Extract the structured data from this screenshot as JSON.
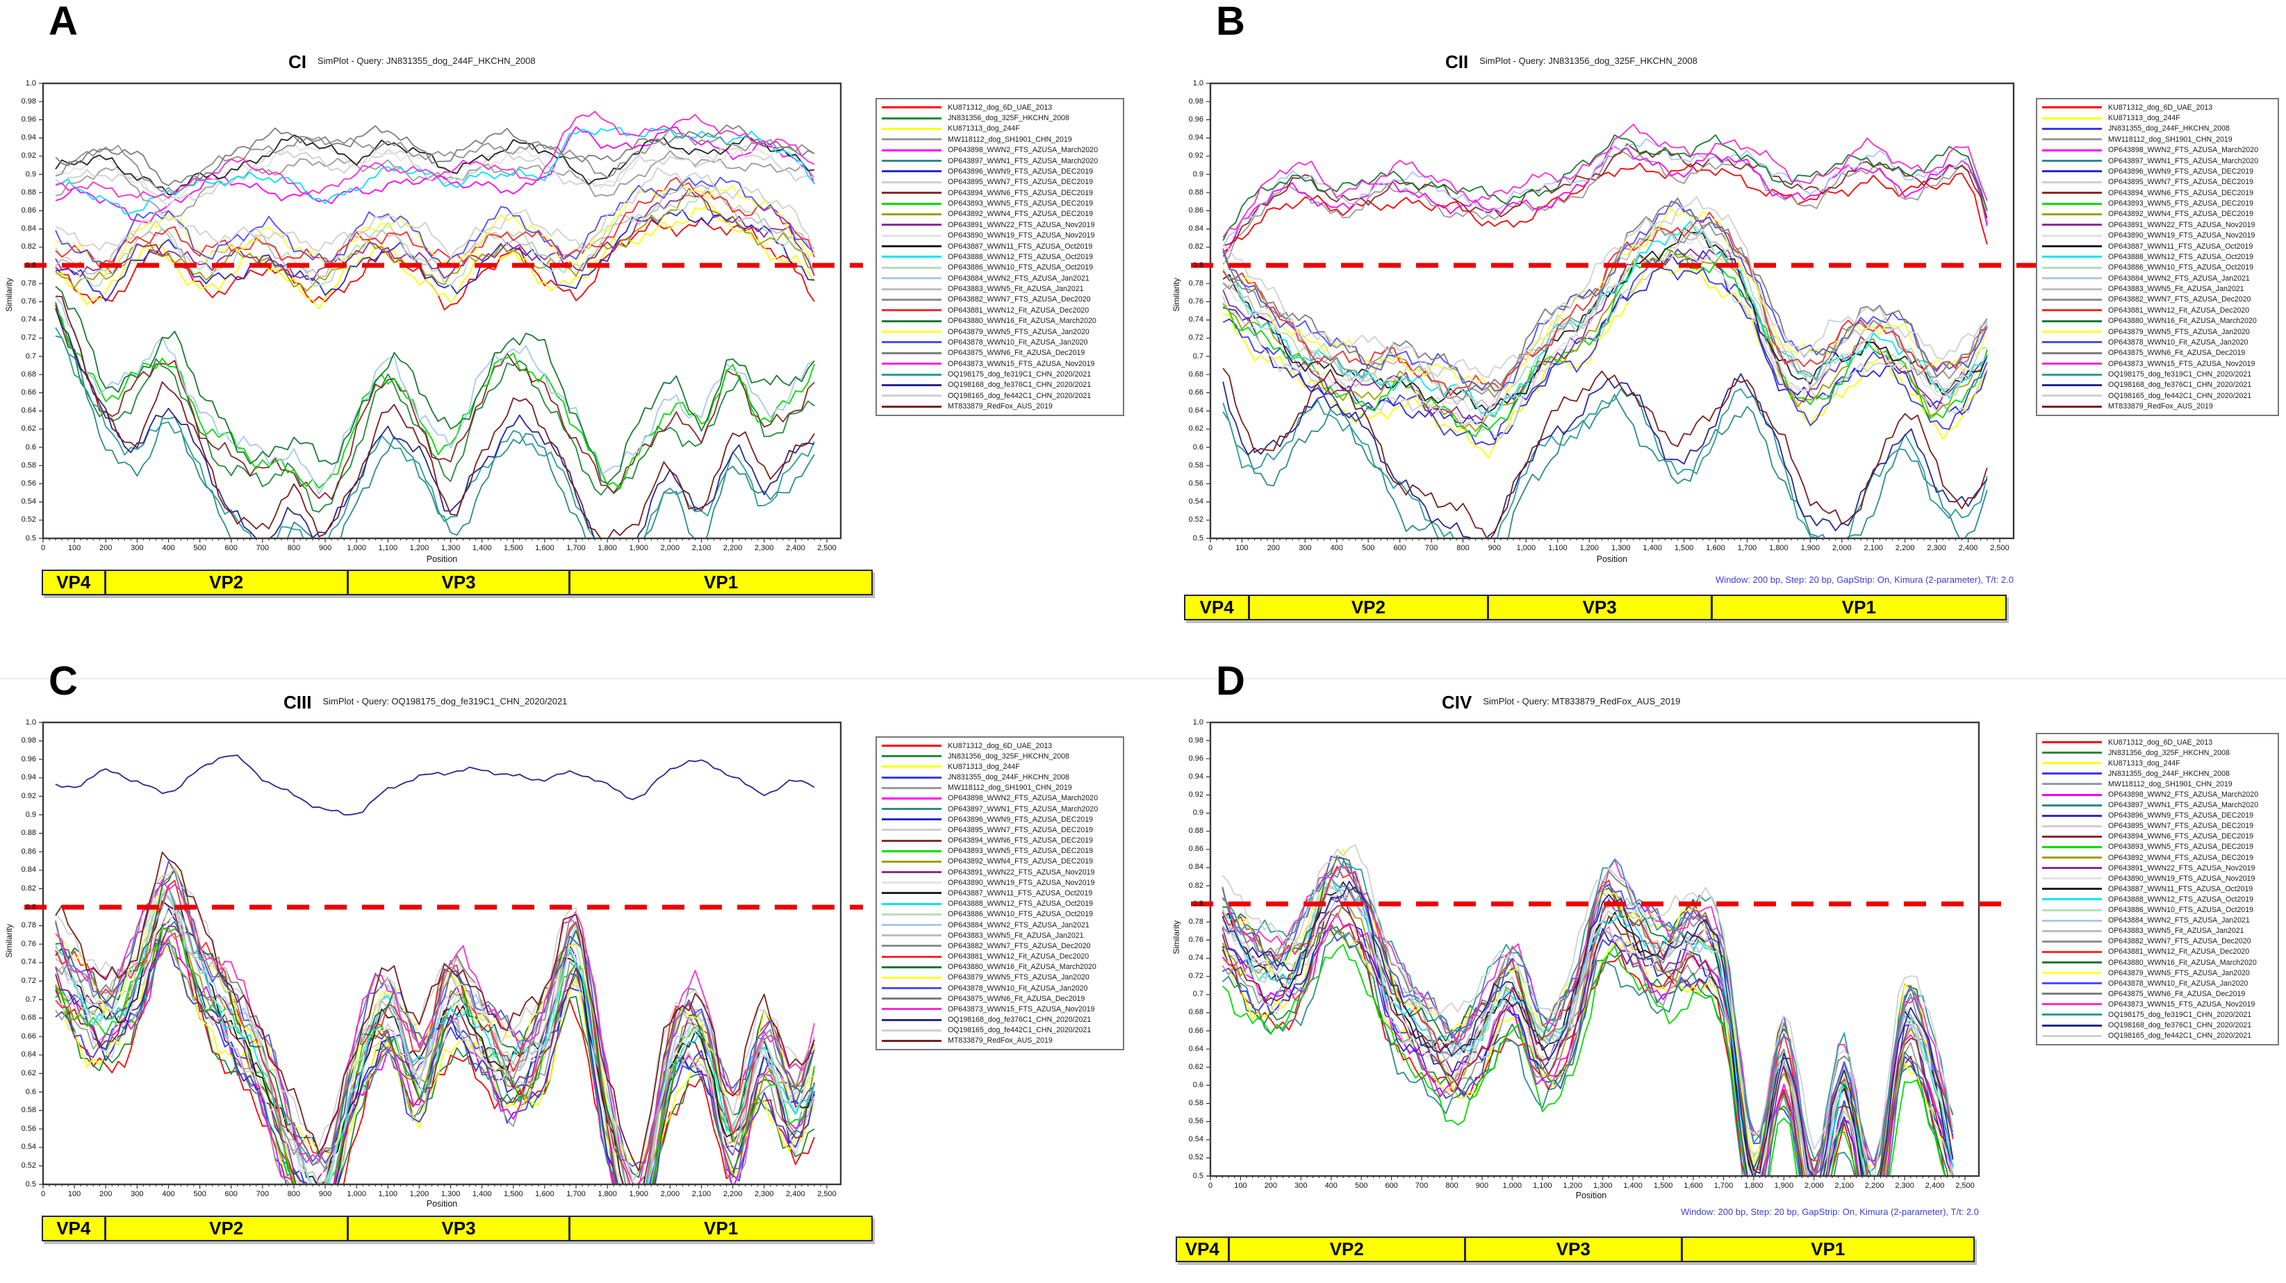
{
  "panels": [
    "A",
    "B",
    "C",
    "D"
  ],
  "x_axis_label": "Position",
  "y_axis_label": "Similarity",
  "threshold_color": "#ee0000",
  "vp_bar_color": "#ffff00",
  "genome_regions": [
    {
      "name": "VP4",
      "start": 0,
      "end": 190
    },
    {
      "name": "VP2",
      "start": 190,
      "end": 950
    },
    {
      "name": "VP3",
      "start": 950,
      "end": 1640
    },
    {
      "name": "VP1",
      "start": 1640,
      "end": 2560
    }
  ],
  "strains": [
    {
      "label": "KU871312_dog_6D_UAE_2013",
      "color": "#ff0000"
    },
    {
      "label": "JN831356_dog_325F_HKCHN_2008",
      "color": "#1f8c3b"
    },
    {
      "label": "KU871313_dog_244F",
      "color": "#ffff00"
    },
    {
      "label": "JN831355_dog_244F_HKCHN_2008",
      "color": "#3a3af0"
    },
    {
      "label": "MW118112_dog_SH1901_CHN_2019",
      "color": "#9a9a9a"
    },
    {
      "label": "OP643898_WWN2_FTS_AZUSA_March2020",
      "color": "#ff00ff"
    },
    {
      "label": "OP643897_WWN1_FTS_AZUSA_March2020",
      "color": "#2e8b8b"
    },
    {
      "label": "OP643896_WWN9_FTS_AZUSA_DEC2019",
      "color": "#2a2ad0"
    },
    {
      "label": "OP643895_WWN7_FTS_AZUSA_DEC2019",
      "color": "#cfcfcf"
    },
    {
      "label": "OP643894_WWN6_FTS_AZUSA_DEC2019",
      "color": "#8b2a2a"
    },
    {
      "label": "OP643893_WWN5_FTS_AZUSA_DEC2019",
      "color": "#00dd00"
    },
    {
      "label": "OP643892_WWN4_FTS_AZUSA_DEC2019",
      "color": "#a0a000"
    },
    {
      "label": "OP643891_WWN22_FTS_AZUSA_Nov2019",
      "color": "#8a2b9e"
    },
    {
      "label": "OP643890_WWN19_FTS_AZUSA_Nov2019",
      "color": "#e2e2e2"
    },
    {
      "label": "OP643887_WWN11_FTS_AZUSA_Oct2019",
      "color": "#202020"
    },
    {
      "label": "OP643888_WWN12_FTS_AZUSA_Oct2019",
      "color": "#00e5ff"
    },
    {
      "label": "OP643886_WWN10_FTS_AZUSA_Oct2019",
      "color": "#b9dcb9"
    },
    {
      "label": "OP643884_WWN2_FTS_AZUSA_Jan2021",
      "color": "#a8c8f0"
    },
    {
      "label": "OP643883_WWN5_Fit_AZUSA_Jan2021",
      "color": "#bdbdbd"
    },
    {
      "label": "OP643882_WWN7_FTS_AZUSA_Dec2020",
      "color": "#8f8f8f"
    },
    {
      "label": "OP643881_WWN12_Fit_AZUSA_Dec2020",
      "color": "#ff2a2a"
    },
    {
      "label": "OP643880_WWN16_Fit_AZUSA_March2020",
      "color": "#1a7a33"
    },
    {
      "label": "OP643879_WWN5_FTS_AZUSA_Jan2020",
      "color": "#ffff33"
    },
    {
      "label": "OP643878_WWN10_Fit_AZUSA_Jan2020",
      "color": "#4d4dff"
    },
    {
      "label": "OP643875_WWN6_Fit_AZUSA_Dec2019",
      "color": "#7d7d7d"
    },
    {
      "label": "OP643873_WWN15_FTS_AZUSA_Nov2019",
      "color": "#ff2ad4"
    },
    {
      "label": "OQ198175_dog_fe319C1_CHN_2020/2021",
      "color": "#2a9d9d"
    },
    {
      "label": "OQ198168_dog_fe376C1_CHN_2020/2021",
      "color": "#28288f"
    },
    {
      "label": "OQ198165_dog_fe442C1_CHN_2020/2021",
      "color": "#d0d0d0"
    },
    {
      "label": "MT833879_RedFox_AUS_2019",
      "color": "#7a1f1f"
    }
  ],
  "chart_data": [
    {
      "panel": "A",
      "type": "line",
      "title": "CI",
      "subtitle": "SimPlot - Query: JN831355_dog_244F_HKCHN_2008",
      "xlabel": "Position",
      "ylabel": "Similarity",
      "xlim": [
        0,
        2500
      ],
      "ylim": [
        0.5,
        1.0
      ],
      "x_tick_step": 100,
      "y_tick_step": 0.02,
      "grid": false,
      "legend_position": "right",
      "threshold": {
        "value": 0.8,
        "color": "#ee0000",
        "style": "dashed"
      },
      "profile_x_step": 100,
      "clusters": {
        "top": {
          "amp": 0.012,
          "spread": 0.006,
          "values": [
            0.895,
            0.905,
            0.915,
            0.9,
            0.875,
            0.89,
            0.905,
            0.92,
            0.93,
            0.925,
            0.92,
            0.93,
            0.915,
            0.905,
            0.92,
            0.925,
            0.92,
            0.905,
            0.895,
            0.92,
            0.93,
            0.925,
            0.93,
            0.925,
            0.915,
            0.905
          ]
        },
        "maghigh": {
          "amp": 0.011,
          "spread": 0.008,
          "values": [
            0.88,
            0.885,
            0.875,
            0.862,
            0.875,
            0.89,
            0.9,
            0.895,
            0.885,
            0.875,
            0.89,
            0.9,
            0.9,
            0.895,
            0.9,
            0.895,
            0.9,
            0.952,
            0.945,
            0.94,
            0.95,
            0.945,
            0.935,
            0.935,
            0.92,
            0.885
          ]
        },
        "mid": {
          "amp": 0.016,
          "spread": 0.005,
          "values": [
            0.815,
            0.8,
            0.79,
            0.825,
            0.83,
            0.8,
            0.81,
            0.82,
            0.8,
            0.79,
            0.82,
            0.83,
            0.81,
            0.79,
            0.82,
            0.83,
            0.81,
            0.8,
            0.83,
            0.855,
            0.87,
            0.875,
            0.86,
            0.845,
            0.825,
            0.785
          ]
        },
        "low": {
          "amp": 0.02,
          "spread": 0.009,
          "values": [
            0.78,
            0.72,
            0.655,
            0.67,
            0.7,
            0.64,
            0.6,
            0.575,
            0.585,
            0.56,
            0.62,
            0.68,
            0.64,
            0.6,
            0.66,
            0.7,
            0.68,
            0.62,
            0.555,
            0.6,
            0.65,
            0.62,
            0.68,
            0.64,
            0.66,
            0.685
          ]
        },
        "deep": {
          "amp": 0.018,
          "spread": 0.011,
          "values": [
            0.765,
            0.7,
            0.62,
            0.6,
            0.645,
            0.58,
            0.52,
            0.5,
            0.525,
            0.49,
            0.56,
            0.62,
            0.585,
            0.52,
            0.58,
            0.625,
            0.6,
            0.54,
            0.485,
            0.5,
            0.56,
            0.52,
            0.6,
            0.55,
            0.58,
            0.62
          ]
        }
      },
      "series": [
        {
          "s": 0,
          "c": "mid"
        },
        {
          "s": 1,
          "c": "low"
        },
        {
          "s": 2,
          "c": "mid"
        },
        {
          "s": 4,
          "c": "top"
        },
        {
          "s": 5,
          "c": "maghigh"
        },
        {
          "s": 6,
          "c": "deep"
        },
        {
          "s": 7,
          "c": "mid"
        },
        {
          "s": 8,
          "c": "top"
        },
        {
          "s": 9,
          "c": "low"
        },
        {
          "s": 10,
          "c": "low"
        },
        {
          "s": 11,
          "c": "mid"
        },
        {
          "s": 12,
          "c": "mid"
        },
        {
          "s": 13,
          "c": "top"
        },
        {
          "s": 14,
          "c": "top"
        },
        {
          "s": 15,
          "c": "maghigh"
        },
        {
          "s": 16,
          "c": "mid"
        },
        {
          "s": 17,
          "c": "low"
        },
        {
          "s": 18,
          "c": "mid"
        },
        {
          "s": 19,
          "c": "top"
        },
        {
          "s": 20,
          "c": "mid"
        },
        {
          "s": 21,
          "c": "low"
        },
        {
          "s": 22,
          "c": "mid"
        },
        {
          "s": 23,
          "c": "mid"
        },
        {
          "s": 24,
          "c": "top"
        },
        {
          "s": 25,
          "c": "maghigh"
        },
        {
          "s": 26,
          "c": "deep"
        },
        {
          "s": 27,
          "c": "deep"
        },
        {
          "s": 28,
          "c": "mid"
        },
        {
          "s": 29,
          "c": "deep"
        }
      ]
    },
    {
      "panel": "B",
      "type": "line",
      "title": "CII",
      "subtitle": "SimPlot - Query: JN831356_dog_325F_HKCHN_2008",
      "caption": "Window: 200 bp, Step: 20 bp, GapStrip: On, Kimura (2-parameter), T/t: 2.0",
      "xlabel": "Position",
      "ylabel": "Similarity",
      "xlim": [
        0,
        2500
      ],
      "ylim": [
        0.5,
        1.0
      ],
      "x_tick_step": 100,
      "y_tick_step": 0.02,
      "grid": false,
      "legend_position": "right",
      "threshold": {
        "value": 0.8,
        "color": "#ee0000",
        "style": "dashed"
      },
      "profile_x_step": 100,
      "clusters": {
        "top": {
          "amp": 0.013,
          "spread": 0.005,
          "values": [
            0.805,
            0.845,
            0.88,
            0.89,
            0.87,
            0.88,
            0.89,
            0.88,
            0.87,
            0.862,
            0.872,
            0.882,
            0.9,
            0.928,
            0.92,
            0.912,
            0.92,
            0.912,
            0.89,
            0.882,
            0.9,
            0.912,
            0.892,
            0.9,
            0.91,
            0.812
          ]
        },
        "mid": {
          "amp": 0.018,
          "spread": 0.004,
          "values": [
            0.79,
            0.76,
            0.73,
            0.7,
            0.683,
            0.672,
            0.68,
            0.662,
            0.65,
            0.643,
            0.68,
            0.72,
            0.74,
            0.79,
            0.82,
            0.828,
            0.82,
            0.78,
            0.7,
            0.672,
            0.7,
            0.72,
            0.7,
            0.662,
            0.68,
            0.73
          ]
        },
        "low": {
          "amp": 0.02,
          "spread": 0.012,
          "values": [
            0.7,
            0.6,
            0.583,
            0.64,
            0.65,
            0.6,
            0.55,
            0.532,
            0.5,
            0.49,
            0.58,
            0.62,
            0.64,
            0.66,
            0.62,
            0.583,
            0.62,
            0.66,
            0.6,
            0.52,
            0.5,
            0.56,
            0.62,
            0.553,
            0.52,
            0.6
          ]
        }
      },
      "series": [
        {
          "s": 0,
          "c": "top"
        },
        {
          "s": 2,
          "c": "mid"
        },
        {
          "s": 3,
          "c": "mid"
        },
        {
          "s": 4,
          "c": "top"
        },
        {
          "s": 5,
          "c": "top"
        },
        {
          "s": 6,
          "c": "low"
        },
        {
          "s": 7,
          "c": "mid"
        },
        {
          "s": 8,
          "c": "mid"
        },
        {
          "s": 9,
          "c": "top"
        },
        {
          "s": 10,
          "c": "mid"
        },
        {
          "s": 11,
          "c": "mid"
        },
        {
          "s": 12,
          "c": "mid"
        },
        {
          "s": 13,
          "c": "mid"
        },
        {
          "s": 14,
          "c": "mid"
        },
        {
          "s": 15,
          "c": "mid"
        },
        {
          "s": 16,
          "c": "mid"
        },
        {
          "s": 17,
          "c": "top"
        },
        {
          "s": 18,
          "c": "mid"
        },
        {
          "s": 19,
          "c": "mid"
        },
        {
          "s": 20,
          "c": "mid"
        },
        {
          "s": 21,
          "c": "top"
        },
        {
          "s": 22,
          "c": "mid"
        },
        {
          "s": 23,
          "c": "mid"
        },
        {
          "s": 24,
          "c": "mid"
        },
        {
          "s": 25,
          "c": "top"
        },
        {
          "s": 26,
          "c": "low"
        },
        {
          "s": 27,
          "c": "low"
        },
        {
          "s": 28,
          "c": "mid"
        },
        {
          "s": 29,
          "c": "low"
        }
      ]
    },
    {
      "panel": "C",
      "type": "line",
      "title": "CIII",
      "subtitle": "SimPlot - Query: OQ198175_dog_fe319C1_CHN_2020/2021",
      "xlabel": "Position",
      "ylabel": "Similarity",
      "xlim": [
        0,
        2500
      ],
      "ylim": [
        0.5,
        1.0
      ],
      "x_tick_step": 100,
      "y_tick_step": 0.02,
      "grid": false,
      "legend_position": "right",
      "threshold": {
        "value": 0.8,
        "color": "#ee0000",
        "style": "dashed"
      },
      "profile_x_step": 100,
      "clusters": {
        "solo": {
          "amp": 0.005,
          "spread": 0,
          "values": [
            0.935,
            0.93,
            0.945,
            0.937,
            0.927,
            0.947,
            0.963,
            0.942,
            0.922,
            0.903,
            0.902,
            0.93,
            0.94,
            0.944,
            0.95,
            0.944,
            0.937,
            0.944,
            0.934,
            0.92,
            0.947,
            0.957,
            0.944,
            0.923,
            0.934,
            0.93
          ]
        },
        "band": {
          "amp": 0.026,
          "spread": 0.0035,
          "values": [
            0.75,
            0.71,
            0.68,
            0.72,
            0.8,
            0.73,
            0.68,
            0.62,
            0.53,
            0.5,
            0.62,
            0.68,
            0.62,
            0.7,
            0.66,
            0.62,
            0.66,
            0.75,
            0.57,
            0.47,
            0.63,
            0.66,
            0.55,
            0.64,
            0.58,
            0.65
          ]
        }
      },
      "series": [
        {
          "s": 0,
          "c": "band"
        },
        {
          "s": 1,
          "c": "band"
        },
        {
          "s": 2,
          "c": "band"
        },
        {
          "s": 3,
          "c": "band"
        },
        {
          "s": 4,
          "c": "band"
        },
        {
          "s": 5,
          "c": "band"
        },
        {
          "s": 6,
          "c": "band"
        },
        {
          "s": 7,
          "c": "band"
        },
        {
          "s": 8,
          "c": "band"
        },
        {
          "s": 9,
          "c": "band"
        },
        {
          "s": 10,
          "c": "band"
        },
        {
          "s": 11,
          "c": "band"
        },
        {
          "s": 12,
          "c": "band"
        },
        {
          "s": 13,
          "c": "band"
        },
        {
          "s": 14,
          "c": "band"
        },
        {
          "s": 15,
          "c": "band"
        },
        {
          "s": 16,
          "c": "band"
        },
        {
          "s": 17,
          "c": "band"
        },
        {
          "s": 18,
          "c": "band"
        },
        {
          "s": 19,
          "c": "band"
        },
        {
          "s": 20,
          "c": "band"
        },
        {
          "s": 21,
          "c": "band"
        },
        {
          "s": 22,
          "c": "band"
        },
        {
          "s": 23,
          "c": "band"
        },
        {
          "s": 24,
          "c": "band"
        },
        {
          "s": 25,
          "c": "band"
        },
        {
          "s": 27,
          "c": "solo"
        },
        {
          "s": 28,
          "c": "band"
        },
        {
          "s": 29,
          "c": "band"
        }
      ]
    },
    {
      "panel": "D",
      "type": "line",
      "title": "CIV",
      "subtitle": "SimPlot - Query: MT833879_RedFox_AUS_2019",
      "caption": "Window: 200 bp, Step: 20 bp, GapStrip: On, Kimura (2-parameter), T/t: 2.0",
      "xlabel": "Position",
      "ylabel": "Similarity",
      "xlim": [
        0,
        2500
      ],
      "ylim": [
        0.5,
        1.0
      ],
      "x_tick_step": 100,
      "y_tick_step": 0.02,
      "grid": false,
      "legend_position": "right",
      "threshold": {
        "value": 0.8,
        "color": "#ee0000",
        "style": "dashed"
      },
      "profile_x_step": 100,
      "clusters": {
        "band": {
          "amp": 0.022,
          "spread": 0.0032,
          "values": [
            0.79,
            0.75,
            0.72,
            0.74,
            0.81,
            0.79,
            0.7,
            0.66,
            0.63,
            0.66,
            0.71,
            0.64,
            0.68,
            0.79,
            0.77,
            0.74,
            0.76,
            0.72,
            0.5,
            0.63,
            0.48,
            0.6,
            0.47,
            0.67,
            0.6,
            0.48
          ]
        }
      },
      "series": [
        {
          "s": 0,
          "c": "band"
        },
        {
          "s": 1,
          "c": "band"
        },
        {
          "s": 2,
          "c": "band"
        },
        {
          "s": 3,
          "c": "band"
        },
        {
          "s": 4,
          "c": "band"
        },
        {
          "s": 5,
          "c": "band"
        },
        {
          "s": 6,
          "c": "band",
          "o": -0.03
        },
        {
          "s": 7,
          "c": "band"
        },
        {
          "s": 8,
          "c": "band"
        },
        {
          "s": 9,
          "c": "band"
        },
        {
          "s": 10,
          "c": "band",
          "o": -0.045
        },
        {
          "s": 11,
          "c": "band"
        },
        {
          "s": 12,
          "c": "band"
        },
        {
          "s": 13,
          "c": "band"
        },
        {
          "s": 14,
          "c": "band"
        },
        {
          "s": 15,
          "c": "band"
        },
        {
          "s": 16,
          "c": "band"
        },
        {
          "s": 17,
          "c": "band"
        },
        {
          "s": 18,
          "c": "band"
        },
        {
          "s": 19,
          "c": "band"
        },
        {
          "s": 20,
          "c": "band"
        },
        {
          "s": 21,
          "c": "band"
        },
        {
          "s": 22,
          "c": "band"
        },
        {
          "s": 23,
          "c": "band"
        },
        {
          "s": 24,
          "c": "band"
        },
        {
          "s": 25,
          "c": "band"
        },
        {
          "s": 26,
          "c": "band"
        },
        {
          "s": 27,
          "c": "band",
          "o": -0.035
        },
        {
          "s": 28,
          "c": "band"
        }
      ]
    }
  ]
}
